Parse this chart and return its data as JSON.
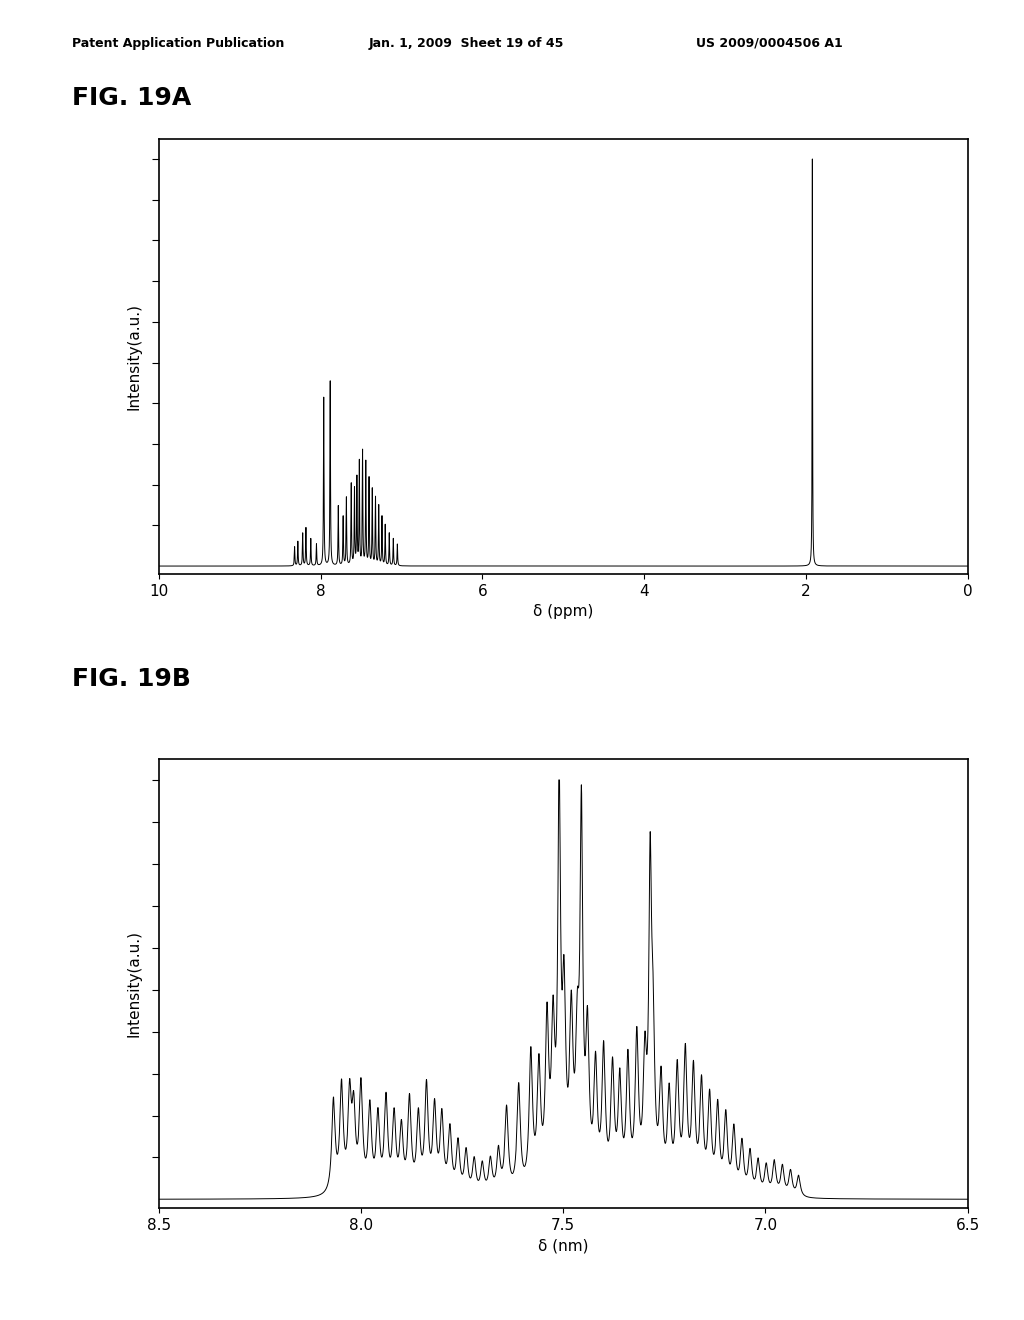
{
  "fig_label_a": "FIG. 19A",
  "fig_label_b": "FIG. 19B",
  "header_left": "Patent Application Publication",
  "header_mid": "Jan. 1, 2009  Sheet 19 of 45",
  "header_right": "US 2009/0004506 A1",
  "plot_a": {
    "xlabel": "δ (ppm)",
    "ylabel": "Intensity(a.u.)",
    "xlim": [
      10,
      0
    ],
    "xticks": [
      10,
      8,
      6,
      4,
      2,
      0
    ]
  },
  "plot_b": {
    "xlabel": "δ (nm)",
    "ylabel": "Intensity(a.u.)",
    "xlim": [
      8.5,
      6.5
    ],
    "xticks": [
      8.5,
      8.0,
      7.5,
      7.0,
      6.5
    ]
  },
  "line_color": "#000000",
  "bg_color": "#ffffff",
  "fontsize_header": 9,
  "fontsize_label": 11,
  "fontsize_figlabel": 18,
  "fontsize_tick": 11
}
